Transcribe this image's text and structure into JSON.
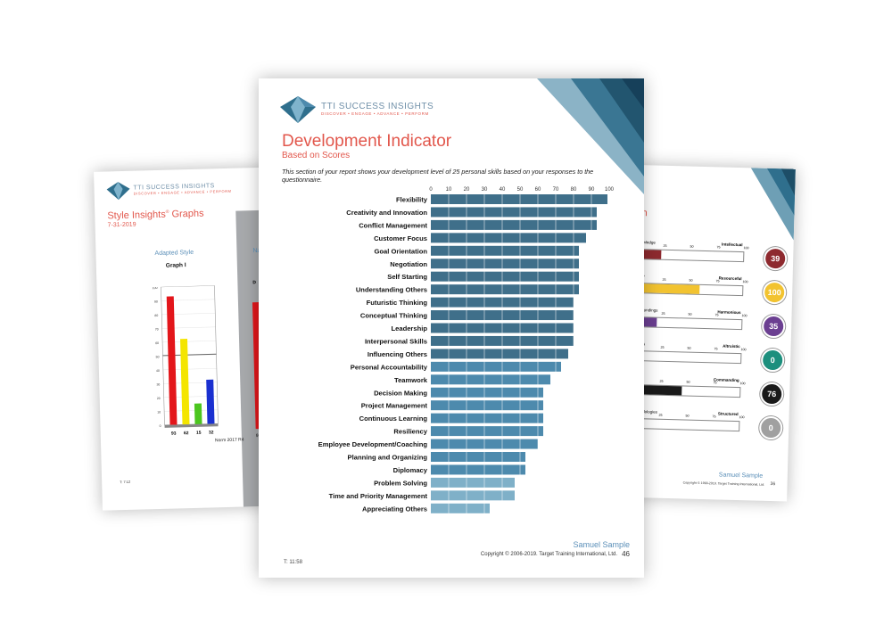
{
  "brand": {
    "name": "TTI SUCCESS INSIGHTS",
    "tagline": "DISCOVER • ENGAGE • ADVANCE • PERFORM"
  },
  "left_page": {
    "title": "Style Insights",
    "title_tm": "®",
    "title_suffix": " Graphs",
    "date": "7-31-2019",
    "adapted_label": "Adapted Style",
    "graph_label": "Graph I",
    "natural_label_partial": "Na",
    "norm_text": "Norm 2017 R4",
    "time_text": "T: 7:12",
    "disc_letters": [
      "D",
      "I",
      "S",
      "C"
    ],
    "disc_values": [
      93,
      62,
      15,
      32
    ],
    "disc_colors": [
      "#e3161b",
      "#f4e500",
      "#4cc61f",
      "#1a30d0"
    ],
    "y_ticks": [
      "100",
      "90",
      "80",
      "70",
      "60",
      "50",
      "40",
      "30",
      "20",
      "10",
      "0"
    ],
    "partial_d": "D",
    "partial_value": "92",
    "partial_g": "Gr"
  },
  "right_page": {
    "title_partial": "ph",
    "motives": [
      {
        "left": "Knowledge",
        "right": "Intellectual",
        "score": 39,
        "color": "#8e2a2f"
      },
      {
        "left": "Utility",
        "right": "Resourceful",
        "score": 100,
        "color": "#f2c330"
      },
      {
        "left": "Surroundings",
        "right": "Harmonious",
        "score": 35,
        "color": "#6b3f91"
      },
      {
        "left": "Others",
        "right": "Altruistic",
        "score": 0,
        "color": "#1d8f7d"
      },
      {
        "left": "Power",
        "right": "Commanding",
        "score": 76,
        "color": "#1a1a1a"
      },
      {
        "left": "Methodologies",
        "right": "Structured",
        "score": 0,
        "color": "#a0a0a0"
      }
    ],
    "scale": [
      "0",
      "25",
      "50",
      "75",
      "100"
    ],
    "footer_name": "Samuel Sample",
    "footer_copy": "Copyright © 1990-2019. Target Training International, Ltd.",
    "footer_page": "36"
  },
  "main_page": {
    "title": "Development Indicator",
    "subtitle": "Based on Scores",
    "description": "This section of your report shows your development level of 25 personal skills based on your responses to the questionnaire.",
    "time_text": "T: 11:58",
    "footer_name": "Samuel Sample",
    "footer_copy": "Copyright © 2006-2019. Target Training International, Ltd.",
    "footer_page": "46"
  },
  "chart_data": {
    "type": "bar",
    "orientation": "horizontal",
    "title": "Development Indicator",
    "subtitle": "Based on Scores",
    "xlim": [
      0,
      100
    ],
    "x_ticks": [
      0,
      10,
      20,
      30,
      40,
      50,
      60,
      70,
      80,
      90,
      100
    ],
    "grid": true,
    "categories": [
      "Flexibility",
      "Creativity and Innovation",
      "Conflict Management",
      "Customer Focus",
      "Goal Orientation",
      "Negotiation",
      "Self Starting",
      "Understanding Others",
      "Futuristic Thinking",
      "Conceptual Thinking",
      "Leadership",
      "Interpersonal Skills",
      "Influencing Others",
      "Personal Accountability",
      "Teamwork",
      "Decision Making",
      "Project Management",
      "Continuous Learning",
      "Resiliency",
      "Employee Development/Coaching",
      "Planning and Organizing",
      "Diplomacy",
      "Problem Solving",
      "Time and Priority Management",
      "Appreciating Others"
    ],
    "values": [
      99,
      93,
      93,
      87,
      83,
      83,
      83,
      83,
      80,
      80,
      80,
      80,
      77,
      73,
      67,
      63,
      63,
      63,
      63,
      60,
      53,
      53,
      47,
      47,
      33
    ],
    "bar_colors": [
      "#3f6f8a",
      "#3f6f8a",
      "#3f6f8a",
      "#3f6f8a",
      "#3f6f8a",
      "#3f6f8a",
      "#3f6f8a",
      "#3f6f8a",
      "#3f6f8a",
      "#3f6f8a",
      "#3f6f8a",
      "#3f6f8a",
      "#3f6f8a",
      "#4d8aad",
      "#4d8aad",
      "#4d8aad",
      "#4d8aad",
      "#4d8aad",
      "#4d8aad",
      "#4d8aad",
      "#4d8aad",
      "#4d8aad",
      "#7fb0c8",
      "#7fb0c8",
      "#7fb0c8"
    ]
  }
}
